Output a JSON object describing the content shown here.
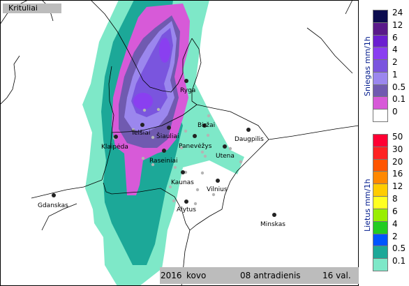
{
  "title": "Krituliai",
  "footer": {
    "year": "2016",
    "month": "kovo",
    "day": "08 antradienis",
    "hour": "16 val."
  },
  "cities": [
    {
      "name": "Ryga"
    },
    {
      "name": "Telšiai"
    },
    {
      "name": "Šiauliai"
    },
    {
      "name": "Biržai"
    },
    {
      "name": "Panevėžys"
    },
    {
      "name": "Daugpilis"
    },
    {
      "name": "Klaipėda"
    },
    {
      "name": "Utena"
    },
    {
      "name": "Raseiniai"
    },
    {
      "name": "Kaunas"
    },
    {
      "name": "Vilnius"
    },
    {
      "name": "Gdanskas"
    },
    {
      "name": "Alytus"
    },
    {
      "name": "Minskas"
    }
  ],
  "legend_snow": {
    "title": "Sniegas mm/1h",
    "levels": [
      "24",
      "12",
      "6",
      "4",
      "2",
      "1",
      "0.5",
      "0.1",
      "0"
    ],
    "colors": [
      "#0c0c4e",
      "#5a1a8a",
      "#6b1fd0",
      "#8a3ff0",
      "#7a55de",
      "#9b87ee",
      "#705ab0",
      "#d75ad8",
      "#ffffff"
    ]
  },
  "legend_rain": {
    "title": "Lietus mm/1h",
    "levels": [
      "50",
      "30",
      "20",
      "16",
      "12",
      "8",
      "6",
      "4",
      "2",
      "0.5",
      "0.1"
    ],
    "colors": [
      "#ff0033",
      "#ff2222",
      "#ff5500",
      "#ff8800",
      "#ffcc00",
      "#ffff22",
      "#99ee00",
      "#22cc22",
      "#0055ff",
      "#1ca898",
      "#7ee8c8"
    ]
  }
}
